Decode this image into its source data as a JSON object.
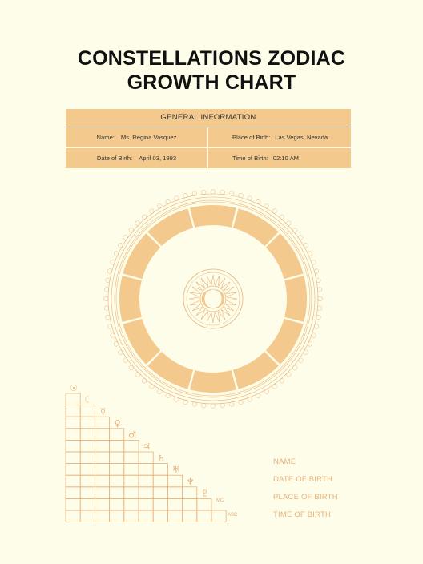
{
  "title": {
    "line1": "CONSTELLATIONS ZODIAC",
    "line2": "GROWTH CHART"
  },
  "general_info": {
    "header": "GENERAL INFORMATION",
    "name_label": "Name:",
    "name_value": "Ms. Regina Vasquez",
    "place_label": "Place of Birth:",
    "place_value": "Las Vegas, Nevada",
    "date_label": "Date of Birth:",
    "date_value": "April 03, 1993",
    "time_label": "Time of Birth:",
    "time_value": "02:10 AM"
  },
  "colors": {
    "background": "#fefde9",
    "accent": "#f3c98d",
    "line": "#e8b27a"
  },
  "wheel": {
    "segments": 12,
    "center_icon": "sun-moon-icon"
  },
  "planet_grid": {
    "planets": [
      {
        "icon": "sun-icon",
        "glyph": "☉"
      },
      {
        "icon": "moon-icon",
        "glyph": "☾"
      },
      {
        "icon": "mercury-icon",
        "glyph": "☿"
      },
      {
        "icon": "venus-icon",
        "glyph": "♀"
      },
      {
        "icon": "mars-icon",
        "glyph": "♂"
      },
      {
        "icon": "jupiter-icon",
        "glyph": "♃"
      },
      {
        "icon": "saturn-icon",
        "glyph": "♄"
      },
      {
        "icon": "uranus-icon",
        "glyph": "♅"
      },
      {
        "icon": "neptune-icon",
        "glyph": "♆"
      },
      {
        "icon": "pluto-icon",
        "glyph": "♇"
      }
    ],
    "mc_label": "MC",
    "asc_label": "ASC"
  },
  "legend": {
    "name": "NAME",
    "date": "DATE OF BIRTH",
    "place": "PLACE OF BIRTH",
    "time": "TIME OF BIRTH"
  }
}
